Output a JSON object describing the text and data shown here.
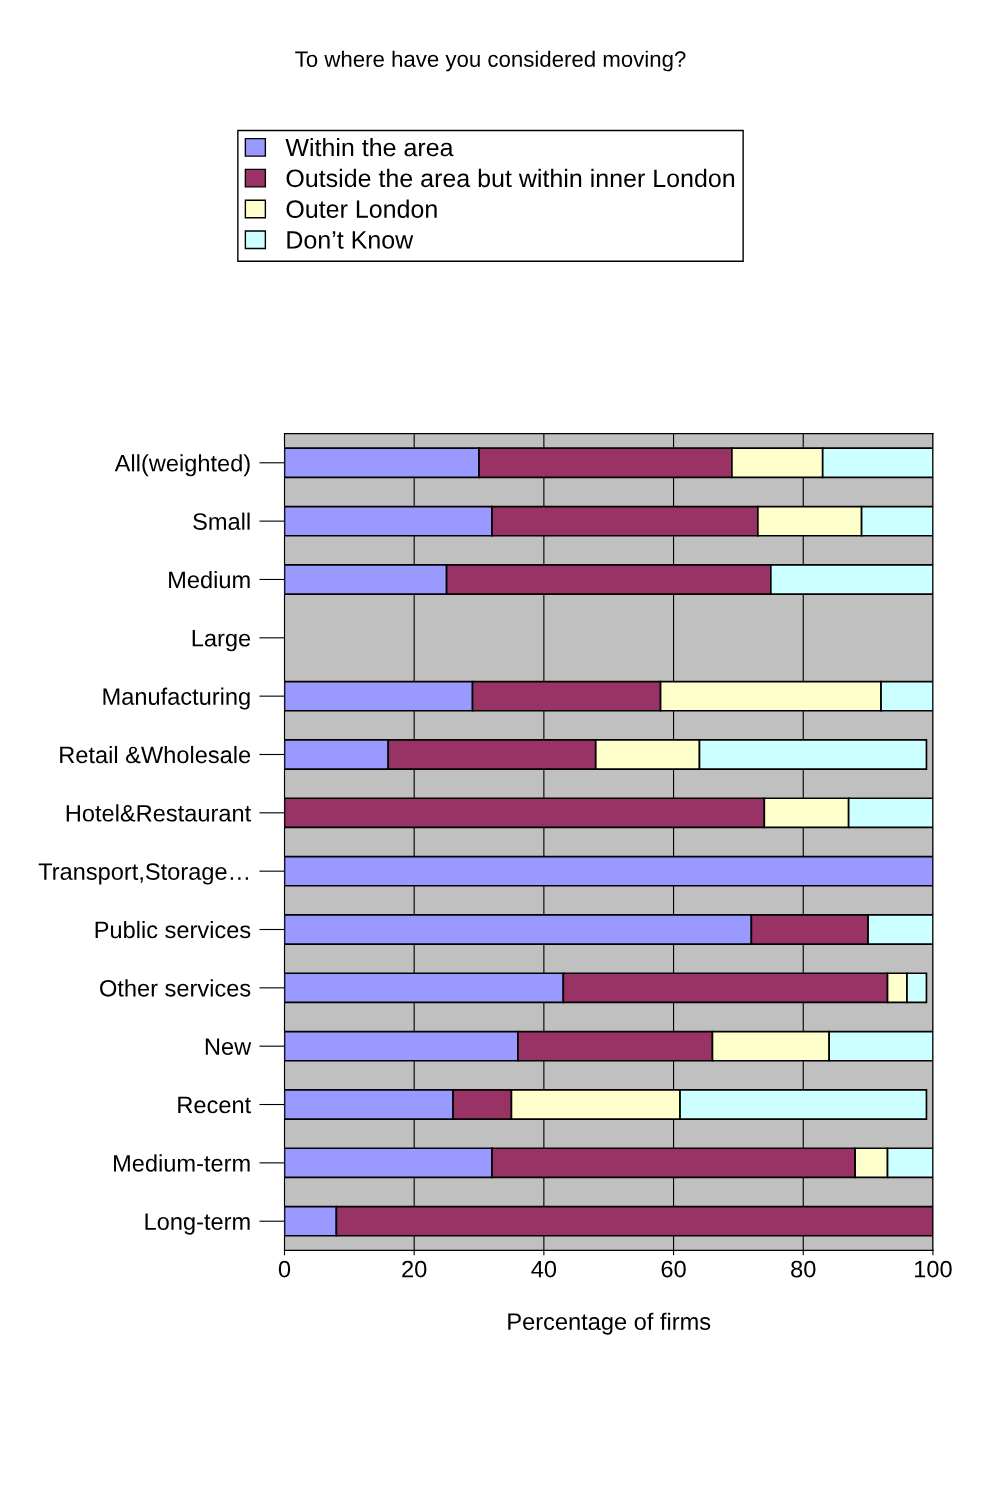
{
  "chart_data": {
    "type": "bar",
    "orientation": "horizontal",
    "stacked": true,
    "title": "To where have you considered moving?",
    "xlabel": "Percentage of firms",
    "categories": [
      "All(weighted)",
      "Small",
      "Medium",
      "Large",
      "Manufacturing",
      "Retail &Wholesale",
      "Hotel&Restaurant",
      "Transport,Storage…",
      "Public services",
      "Other services",
      "New",
      "Recent",
      "Medium-term",
      "Long-term"
    ],
    "series": [
      {
        "name": "Within the area",
        "color": "#9999ff",
        "values": [
          30,
          32,
          25,
          null,
          29,
          16,
          null,
          100,
          72,
          43,
          36,
          26,
          32,
          8
        ]
      },
      {
        "name": "Outside the area but within inner London",
        "color": "#993366",
        "values": [
          39,
          41,
          50,
          null,
          29,
          32,
          74,
          null,
          18,
          50,
          30,
          9,
          56,
          92
        ]
      },
      {
        "name": "Outer London",
        "color": "#ffffcc",
        "values": [
          14,
          16,
          null,
          null,
          34,
          16,
          13,
          null,
          null,
          3,
          18,
          26,
          5,
          null
        ]
      },
      {
        "name": "Don’t Know",
        "color": "#ccffff",
        "values": [
          17,
          11,
          25,
          null,
          8,
          35,
          13,
          null,
          10,
          3,
          16,
          38,
          7,
          null
        ]
      }
    ],
    "xlim": [
      0,
      100
    ],
    "xticks": [
      0,
      20,
      40,
      60,
      80,
      100
    ],
    "grid": "x",
    "legend": "top"
  }
}
